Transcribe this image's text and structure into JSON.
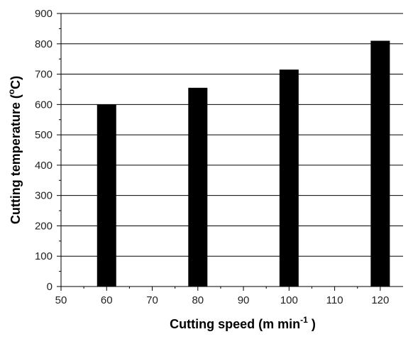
{
  "chart_data": {
    "type": "bar",
    "x": [
      60,
      80,
      100,
      120
    ],
    "values": [
      600,
      655,
      715,
      810
    ],
    "xlabel": "Cutting speed (m min",
    "xlabel_sup": "-1",
    "xlabel_end": " )",
    "ylabel": "Cutting temperature (",
    "ylabel_sup": "o",
    "ylabel_end": "C)",
    "xlim": [
      50,
      125
    ],
    "ylim": [
      0,
      900
    ],
    "xticks": [
      50,
      60,
      70,
      80,
      90,
      100,
      110,
      120
    ],
    "yticks": [
      0,
      100,
      200,
      300,
      400,
      500,
      600,
      700,
      800,
      900
    ],
    "bar_color": "#000000",
    "grid": "horizontal",
    "grid_color": "#000000"
  }
}
